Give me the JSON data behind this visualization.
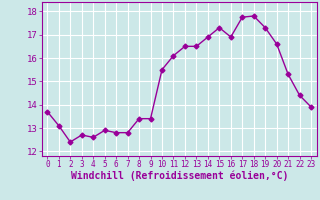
{
  "x": [
    0,
    1,
    2,
    3,
    4,
    5,
    6,
    7,
    8,
    9,
    10,
    11,
    12,
    13,
    14,
    15,
    16,
    17,
    18,
    19,
    20,
    21,
    22,
    23
  ],
  "y": [
    13.7,
    13.1,
    12.4,
    12.7,
    12.6,
    12.9,
    12.8,
    12.8,
    13.4,
    13.4,
    15.5,
    16.1,
    16.5,
    16.5,
    16.9,
    17.3,
    16.9,
    17.75,
    17.8,
    17.3,
    16.6,
    15.3,
    14.4,
    13.9
  ],
  "line_color": "#990099",
  "marker": "D",
  "marker_size": 2.5,
  "line_width": 1.0,
  "bg_color": "#cce8e8",
  "grid_color": "#ffffff",
  "xlabel": "Windchill (Refroidissement éolien,°C)",
  "xlabel_color": "#990099",
  "xlabel_fontsize": 7,
  "xtick_fontsize": 5.5,
  "ytick_fontsize": 6.5,
  "ylim": [
    11.8,
    18.4
  ],
  "yticks": [
    12,
    13,
    14,
    15,
    16,
    17,
    18
  ],
  "xticks": [
    0,
    1,
    2,
    3,
    4,
    5,
    6,
    7,
    8,
    9,
    10,
    11,
    12,
    13,
    14,
    15,
    16,
    17,
    18,
    19,
    20,
    21,
    22,
    23
  ],
  "tick_color": "#990099",
  "spine_color": "#990099"
}
